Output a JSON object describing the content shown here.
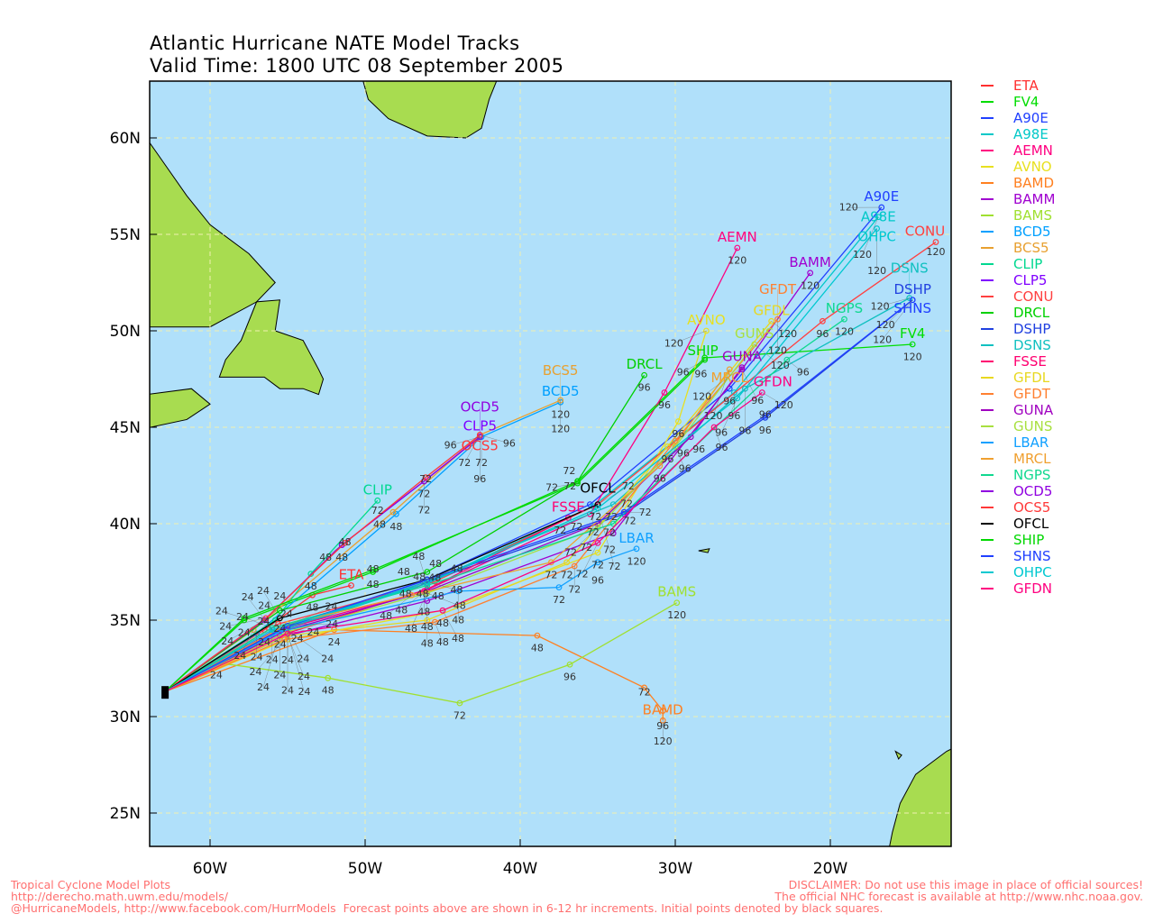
{
  "title": {
    "line1": "Atlantic Hurricane NATE Model Tracks",
    "line2": "Valid Time: 1800 UTC 08 September 2005"
  },
  "map": {
    "lon_range": [
      -64,
      -12
    ],
    "lat_range": [
      23,
      63
    ],
    "x_ticks": [
      {
        "lon": -60,
        "label": "60W"
      },
      {
        "lon": -50,
        "label": "50W"
      },
      {
        "lon": -40,
        "label": "40W"
      },
      {
        "lon": -30,
        "label": "30W"
      },
      {
        "lon": -20,
        "label": "20W"
      }
    ],
    "y_ticks": [
      {
        "lat": 60,
        "label": "60N"
      },
      {
        "lat": 55,
        "label": "55N"
      },
      {
        "lat": 50,
        "label": "50N"
      },
      {
        "lat": 45,
        "label": "45N"
      },
      {
        "lat": 40,
        "label": "40N"
      },
      {
        "lat": 35,
        "label": "35N"
      },
      {
        "lat": 30,
        "label": "30N"
      },
      {
        "lat": 25,
        "label": "25N"
      }
    ],
    "grid": true,
    "ocean_color": "#b0e0fa",
    "land_color": "#a8dc50",
    "initial_point": [
      -62.9,
      31.3
    ]
  },
  "tracks": [
    {
      "name": "ETA",
      "color": "#ff3030",
      "points": [
        [
          -56.5,
          34.5,
          24
        ],
        [
          -53.4,
          36.3,
          48
        ],
        [
          -50.9,
          36.8,
          null
        ]
      ]
    },
    {
      "name": "FV4",
      "color": "#00dd00",
      "points": [
        [
          -57.8,
          35.0,
          24
        ],
        [
          -49.5,
          37.5,
          48
        ],
        [
          -36.3,
          42.2,
          72
        ],
        [
          -28.1,
          48.6,
          96
        ],
        [
          -14.7,
          49.3,
          120
        ]
      ]
    },
    {
      "name": "A90E",
      "color": "#2040ff",
      "points": [
        [
          -56.0,
          34.4,
          24
        ],
        [
          -46.3,
          37.0,
          48
        ],
        [
          -35.5,
          41.0,
          72
        ],
        [
          -26.5,
          47.0,
          96
        ],
        [
          -16.7,
          56.4,
          120
        ]
      ]
    },
    {
      "name": "A98E",
      "color": "#00c8c8",
      "points": [
        [
          -56.0,
          34.3,
          24
        ],
        [
          -46.0,
          36.9,
          48
        ],
        [
          -35.3,
          40.9,
          72
        ],
        [
          -26.2,
          46.8,
          96
        ],
        [
          -16.9,
          55.9,
          120
        ]
      ]
    },
    {
      "name": "AEMN",
      "color": "#ff0080",
      "points": [
        [
          -55.5,
          34.5,
          24
        ],
        [
          -46.2,
          36.5,
          48
        ],
        [
          -35.5,
          40.5,
          72
        ],
        [
          -30.7,
          46.8,
          96
        ],
        [
          -26.0,
          54.3,
          120
        ]
      ]
    },
    {
      "name": "AVNO",
      "color": "#e8e020",
      "points": [
        [
          -55.0,
          34.0,
          24
        ],
        [
          -45.0,
          35.5,
          48
        ],
        [
          -35.0,
          38.5,
          72
        ],
        [
          -29.8,
          45.3,
          96
        ],
        [
          -28.0,
          50.0,
          120
        ]
      ]
    },
    {
      "name": "BAMD",
      "color": "#ff8020",
      "points": [
        [
          -52.0,
          34.5,
          24
        ],
        [
          -38.9,
          34.2,
          48
        ],
        [
          -32.0,
          31.5,
          72
        ],
        [
          -30.8,
          30.3,
          96
        ],
        [
          -30.8,
          29.8,
          120
        ]
      ]
    },
    {
      "name": "BAMM",
      "color": "#a000d0",
      "points": [
        [
          -55.0,
          34.2,
          24
        ],
        [
          -46.0,
          36.0,
          48
        ],
        [
          -34.0,
          39.5,
          72
        ],
        [
          -25.7,
          48.0,
          96
        ],
        [
          -21.3,
          53.0,
          120
        ]
      ]
    },
    {
      "name": "BAMS",
      "color": "#a0e030",
      "points": [
        [
          -59.6,
          32.8,
          24
        ],
        [
          -52.4,
          32.0,
          48
        ],
        [
          -43.9,
          30.7,
          72
        ],
        [
          -36.8,
          32.7,
          96
        ],
        [
          -29.9,
          35.9,
          120
        ]
      ]
    },
    {
      "name": "BCD5",
      "color": "#00a0ff",
      "points": [
        [
          -57.0,
          34.3,
          24
        ],
        [
          -48.0,
          40.5,
          48
        ],
        [
          -42.5,
          44.5,
          72
        ],
        [
          -37.4,
          46.3,
          120
        ]
      ]
    },
    {
      "name": "BCS5",
      "color": "#e8a030",
      "points": [
        [
          -57.2,
          34.5,
          24
        ],
        [
          -48.2,
          40.6,
          48
        ],
        [
          -42.6,
          44.6,
          72
        ],
        [
          -37.4,
          46.4,
          120
        ]
      ]
    },
    {
      "name": "CLIP",
      "color": "#00d890",
      "points": [
        [
          -55.8,
          35.0,
          24
        ],
        [
          -53.5,
          37.4,
          48
        ],
        [
          -49.2,
          41.2,
          72
        ]
      ]
    },
    {
      "name": "CLP5",
      "color": "#8000ff",
      "points": [
        [
          -56.5,
          35.0,
          24
        ],
        [
          -51.5,
          38.9,
          48
        ],
        [
          -46.2,
          42.2,
          72
        ],
        [
          -42.6,
          44.5,
          96
        ]
      ]
    },
    {
      "name": "CONU",
      "color": "#ff4040",
      "points": [
        [
          -55.6,
          34.8,
          24
        ],
        [
          -45.5,
          37.0,
          48
        ],
        [
          -35.0,
          41.0,
          72
        ],
        [
          -20.5,
          50.5,
          96
        ],
        [
          -13.2,
          54.6,
          120
        ]
      ]
    },
    {
      "name": "DRCL",
      "color": "#00d000",
      "points": [
        [
          -55.5,
          35.5,
          24
        ],
        [
          -46.0,
          37.5,
          48
        ],
        [
          -36.3,
          42.2,
          72
        ],
        [
          -32.0,
          47.7,
          96
        ]
      ]
    },
    {
      "name": "DSHP",
      "color": "#2040e0",
      "points": [
        [
          -55.0,
          34.6,
          24
        ],
        [
          -46.0,
          37.0,
          48
        ],
        [
          -33.3,
          40.5,
          72
        ],
        [
          -24.2,
          45.5,
          96
        ],
        [
          -14.7,
          51.6,
          120
        ]
      ]
    },
    {
      "name": "DSNS",
      "color": "#10c0c0",
      "points": [
        [
          -55.0,
          34.6,
          24
        ],
        [
          -46.0,
          37.0,
          48
        ],
        [
          -34.0,
          41.0,
          72
        ],
        [
          -25.5,
          47.0,
          96
        ],
        [
          -14.9,
          51.7,
          120
        ]
      ]
    },
    {
      "name": "FSSE",
      "color": "#ff0070",
      "points": [
        [
          -55.5,
          34.2,
          24
        ],
        [
          -46.0,
          36.6,
          48
        ],
        [
          -36.9,
          40.3,
          72
        ]
      ]
    },
    {
      "name": "GFDL",
      "color": "#e8d820",
      "points": [
        [
          -55.0,
          34.2,
          24
        ],
        [
          -46.0,
          35.0,
          48
        ],
        [
          -37.0,
          38.0,
          72
        ],
        [
          -30.5,
          44.0,
          96
        ],
        [
          -23.8,
          50.5,
          120
        ]
      ]
    },
    {
      "name": "GFDT",
      "color": "#ff8030",
      "points": [
        [
          -55.2,
          34.0,
          24
        ],
        [
          -45.5,
          34.9,
          48
        ],
        [
          -36.5,
          37.8,
          72
        ],
        [
          -30.0,
          44.3,
          96
        ],
        [
          -23.4,
          50.6,
          120
        ]
      ]
    },
    {
      "name": "GUNA",
      "color": "#a000c0",
      "points": [
        [
          -55.0,
          34.5,
          24
        ],
        [
          -46.0,
          36.5,
          48
        ],
        [
          -35.0,
          40.0,
          72
        ],
        [
          -29.0,
          44.5,
          96
        ],
        [
          -25.7,
          48.1,
          120
        ]
      ]
    },
    {
      "name": "GUNS",
      "color": "#a8e040",
      "points": [
        [
          -55.0,
          34.4,
          24
        ],
        [
          -46.0,
          36.4,
          48
        ],
        [
          -35.0,
          39.8,
          72
        ],
        [
          -30.0,
          44.0,
          96
        ],
        [
          -24.9,
          49.3,
          120
        ]
      ]
    },
    {
      "name": "LBAR",
      "color": "#10a0ff",
      "points": [
        [
          -55.5,
          34.4,
          24
        ],
        [
          -44.0,
          36.5,
          48
        ],
        [
          -37.5,
          36.7,
          72
        ],
        [
          -35.0,
          38.0,
          96
        ],
        [
          -32.5,
          38.7,
          120
        ]
      ]
    },
    {
      "name": "MRCL",
      "color": "#f0a030",
      "points": [
        [
          -55.0,
          34.8,
          24
        ],
        [
          -47.0,
          36.3,
          48
        ],
        [
          -38.0,
          38.0,
          72
        ],
        [
          -31.0,
          43.0,
          96
        ],
        [
          -26.5,
          48.0,
          120
        ]
      ]
    },
    {
      "name": "NGPS",
      "color": "#10d890",
      "points": [
        [
          -56.0,
          34.6,
          24
        ],
        [
          -46.0,
          36.8,
          48
        ],
        [
          -34.0,
          40.0,
          72
        ],
        [
          -22.8,
          48.5,
          96
        ],
        [
          -19.1,
          50.6,
          120
        ]
      ]
    },
    {
      "name": "OCD5",
      "color": "#9000e0",
      "points": [
        [
          -56.5,
          35.0,
          24
        ],
        [
          -51.5,
          38.9,
          48
        ],
        [
          -46.2,
          42.2,
          72
        ],
        [
          -42.6,
          44.5,
          96
        ]
      ]
    },
    {
      "name": "OCS5",
      "color": "#ff3838",
      "points": [
        [
          -56.4,
          35.1,
          24
        ],
        [
          -51.3,
          39.0,
          48
        ],
        [
          -46.1,
          42.4,
          72
        ],
        [
          -42.6,
          44.6,
          96
        ]
      ]
    },
    {
      "name": "OFCL",
      "color": "#000000",
      "points": [
        [
          -55.5,
          35.1,
          24
        ],
        [
          -46.0,
          37.1,
          48
        ],
        [
          -35.0,
          41.0,
          72
        ]
      ]
    },
    {
      "name": "SHIP",
      "color": "#00d800",
      "points": [
        [
          -57.8,
          35.1,
          24
        ],
        [
          -49.5,
          37.6,
          48
        ],
        [
          -36.3,
          42.1,
          72
        ],
        [
          -28.1,
          48.5,
          96
        ]
      ]
    },
    {
      "name": "SHNS",
      "color": "#2040ff",
      "points": [
        [
          -55.0,
          34.7,
          24
        ],
        [
          -46.0,
          37.1,
          48
        ],
        [
          -33.3,
          40.6,
          72
        ],
        [
          -24.2,
          45.6,
          96
        ],
        [
          -14.7,
          51.6,
          120
        ]
      ]
    },
    {
      "name": "OHPC",
      "color": "#00c8d0",
      "points": [
        [
          -56.0,
          34.5,
          24
        ],
        [
          -46.0,
          36.9,
          48
        ],
        [
          -35.0,
          40.8,
          72
        ],
        [
          -26.0,
          46.5,
          96
        ],
        [
          -17.0,
          55.3,
          120
        ]
      ]
    },
    {
      "name": "GFDN",
      "color": "#ff0080",
      "points": [
        [
          -55.0,
          34.3,
          24
        ],
        [
          -45.0,
          35.5,
          48
        ],
        [
          -35.0,
          39.0,
          72
        ],
        [
          -27.5,
          45.0,
          96
        ],
        [
          -24.4,
          46.8,
          120
        ]
      ]
    }
  ],
  "footer": {
    "left": [
      "Tropical Cyclone Model Plots",
      "http://derecho.math.uwm.edu/models/",
      "@HurricaneModels, http://www.facebook.com/HurrModels  Forecast points above are shown in 6-12 hr increments. Initial points denoted by black squares."
    ],
    "right": [
      "DISCLAIMER: Do not use this image in place of official sources!",
      "The official NHC forecast is available at http://www.nhc.noaa.gov."
    ]
  }
}
